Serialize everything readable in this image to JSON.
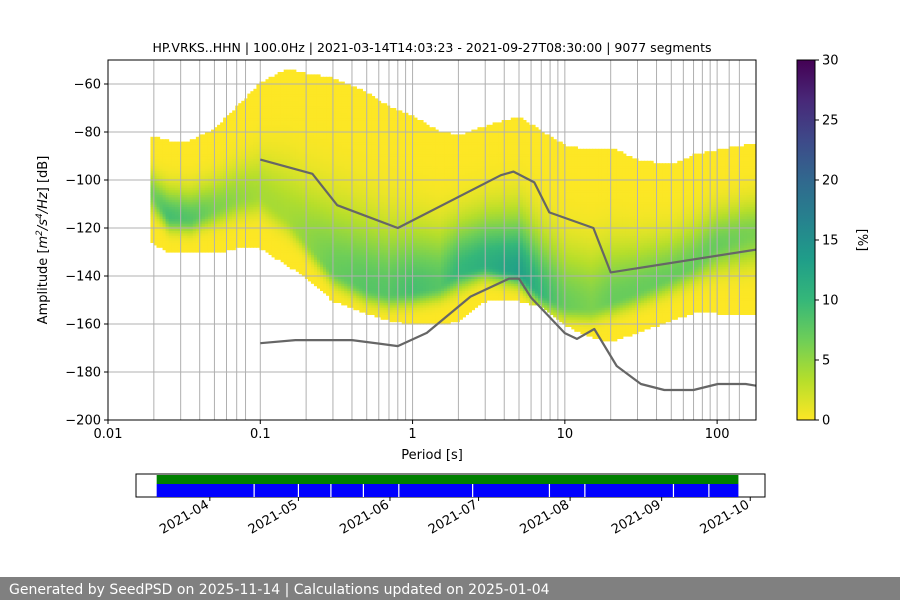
{
  "chart_data": {
    "type": "heatmap",
    "title": "HP.VRKS..HHN | 100.0Hz | 2021-03-14T14:03:23 - 2021-09-27T08:30:00 | 9077 segments",
    "xlabel": "Period [s]",
    "ylabel_parts": [
      "Amplitude [",
      "m",
      "2",
      "/s",
      "4",
      "/Hz",
      "] [dB]"
    ],
    "xscale": "log",
    "xlim": [
      0.01,
      180
    ],
    "ylim": [
      -200,
      -50
    ],
    "x_ticks": [
      {
        "value": 0.01,
        "label": "0.01"
      },
      {
        "value": 0.1,
        "label": "0.1"
      },
      {
        "value": 1,
        "label": "1"
      },
      {
        "value": 10,
        "label": "10"
      },
      {
        "value": 100,
        "label": "100"
      }
    ],
    "y_ticks": [
      -200,
      -180,
      -160,
      -140,
      -120,
      -100,
      -80,
      -60
    ],
    "y_tick_labels": [
      "−200",
      "−180",
      "−160",
      "−140",
      "−120",
      "−100",
      "−80",
      "−60"
    ],
    "grid_periods": [
      0.02,
      0.03,
      0.04,
      0.05,
      0.06,
      0.07,
      0.08,
      0.1,
      0.2,
      0.3,
      0.4,
      0.5,
      0.6,
      0.7,
      0.8,
      0.9,
      1,
      2,
      3,
      4,
      5,
      6,
      7,
      8,
      9,
      10,
      20,
      30,
      40,
      50,
      60,
      70,
      80,
      90,
      100,
      120,
      140
    ],
    "colorbar": {
      "label": "[%]",
      "range": [
        0,
        30
      ],
      "ticks": [
        0,
        5,
        10,
        15,
        20,
        25,
        30
      ],
      "colors": [
        "#fde725",
        "#b5de2b",
        "#6ece58",
        "#35b779",
        "#1f9e89",
        "#26828e",
        "#31688e",
        "#3e4989",
        "#482878",
        "#440154"
      ]
    },
    "density": {
      "periods": [
        0.019,
        0.025,
        0.035,
        0.05,
        0.07,
        0.1,
        0.15,
        0.2,
        0.3,
        0.5,
        0.7,
        1,
        1.5,
        2,
        3,
        5,
        7,
        10,
        15,
        20,
        30,
        50,
        70,
        100,
        180
      ],
      "upper_db": [
        -82,
        -84,
        -84,
        -79,
        -70,
        -60,
        -54,
        -56,
        -58,
        -64,
        -70,
        -74,
        -80,
        -82,
        -78,
        -74,
        -80,
        -86,
        -88,
        -87,
        -92,
        -94,
        -90,
        -88,
        -85
      ],
      "lower_db": [
        -125,
        -130,
        -130,
        -130,
        -128,
        -128,
        -135,
        -140,
        -150,
        -155,
        -158,
        -160,
        -160,
        -158,
        -150,
        -150,
        -152,
        -160,
        -165,
        -167,
        -163,
        -158,
        -155,
        -155,
        -156
      ],
      "mode_db": [
        -105,
        -115,
        -116,
        -112,
        -108,
        -106,
        -115,
        -125,
        -138,
        -145,
        -147,
        -146,
        -144,
        -138,
        -135,
        -138,
        -147,
        -152,
        -153,
        -150,
        -146,
        -140,
        -135,
        -127,
        -122
      ],
      "mode_peak_percent": [
        6,
        9,
        8,
        6,
        5,
        4,
        4,
        5,
        7,
        8,
        8,
        9,
        8,
        10,
        11,
        13,
        10,
        7,
        6,
        7,
        7,
        7,
        7,
        7,
        6
      ]
    },
    "noise_models": [
      {
        "name": "high-noise-model",
        "color": "#666666",
        "x": [
          0.1,
          0.22,
          0.32,
          0.8,
          3.8,
          4.6,
          6.3,
          7.9,
          15.4,
          20,
          180
        ],
        "y": [
          -91.5,
          -97.4,
          -110.5,
          -120,
          -98,
          -96.5,
          -101,
          -113.5,
          -120,
          -138.5,
          -129
        ]
      },
      {
        "name": "low-noise-model",
        "color": "#666666",
        "x": [
          0.1,
          0.17,
          0.4,
          0.8,
          1.24,
          2.4,
          4.3,
          5,
          6,
          10,
          12,
          15.6,
          21.9,
          31.6,
          45,
          70,
          101,
          154,
          180
        ],
        "y": [
          -168,
          -166.7,
          -166.7,
          -169.2,
          -163.7,
          -148.6,
          -141.1,
          -141.1,
          -149,
          -163.8,
          -166.2,
          -162.1,
          -177.5,
          -185,
          -187.5,
          -187.5,
          -185,
          -185,
          -185.7
        ]
      }
    ],
    "timeline": {
      "tick_labels": [
        "2021-04",
        "2021-05",
        "2021-06",
        "2021-07",
        "2021-08",
        "2021-09",
        "2021-10"
      ],
      "tick_dates": [
        "2021-04-01",
        "2021-05-01",
        "2021-06-01",
        "2021-07-01",
        "2021-08-01",
        "2021-09-01",
        "2021-10-01"
      ],
      "range": [
        "2021-03-07",
        "2021-10-06"
      ],
      "coverage_start": "2021-03-14",
      "coverage_end": "2021-09-27",
      "green_color": "#008000",
      "blue_color": "#0000ff",
      "gap_dates": [
        "2021-04-16",
        "2021-05-01",
        "2021-05-12",
        "2021-05-23",
        "2021-06-04",
        "2021-06-29",
        "2021-07-25",
        "2021-08-06",
        "2021-09-05",
        "2021-09-17"
      ]
    }
  },
  "footer": {
    "text": "Generated by SeedPSD on 2025-11-14 | Calculations updated on 2025-01-04"
  }
}
